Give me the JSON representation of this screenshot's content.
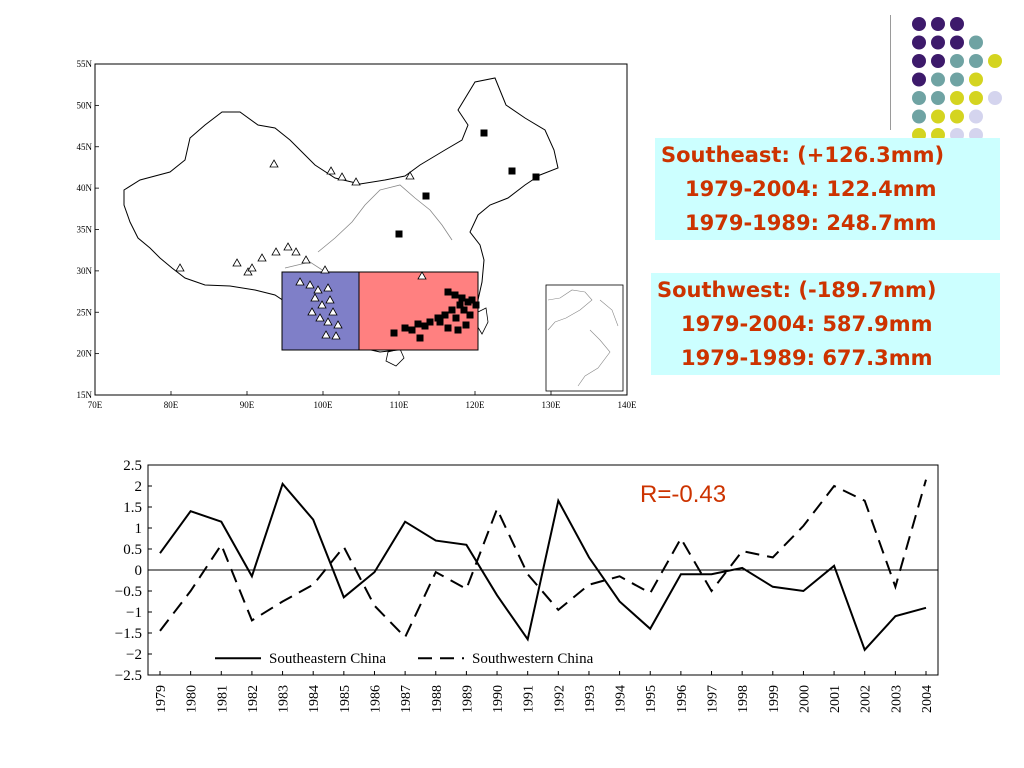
{
  "map": {
    "lat_ticks": [
      "55N",
      "50N",
      "45N",
      "40N",
      "35N",
      "30N",
      "25N",
      "20N",
      "15N"
    ],
    "lon_ticks": [
      "70E",
      "80E",
      "90E",
      "100E",
      "110E",
      "120E",
      "130E",
      "140E"
    ],
    "colors": {
      "southwest_region": "#7f7fc8",
      "southeast_region": "#ff8080"
    }
  },
  "colors": {
    "text_accent": "#cc3300",
    "infobox_bg": "#ccffff",
    "dot_purple": "#3d1a6b",
    "dot_teal": "#6fa3a3",
    "dot_yellow": "#d4d420",
    "dot_lilac": "#d4d4ee"
  },
  "southeast": {
    "title": "Southeast: (+126.3mm)",
    "line1": "1979-2004: 122.4mm",
    "line2": "1979-1989: 248.7mm"
  },
  "southwest": {
    "title": "Southwest: (-189.7mm)",
    "line1": "1979-2004: 587.9mm",
    "line2": "1979-1989: 677.3mm"
  },
  "correlation": "R=-0.43",
  "chart_data": {
    "type": "line",
    "x": [
      "1979",
      "1980",
      "1981",
      "1982",
      "1983",
      "1984",
      "1985",
      "1986",
      "1987",
      "1988",
      "1989",
      "1990",
      "1991",
      "1992",
      "1993",
      "1994",
      "1995",
      "1996",
      "1997",
      "1998",
      "1999",
      "2000",
      "2001",
      "2002",
      "2003",
      "2004"
    ],
    "ylim": [
      -2.5,
      2.5
    ],
    "yticks": [
      "2.5",
      "2",
      "1.5",
      "1",
      "0.5",
      "0",
      "−0.5",
      "−1",
      "−1.5",
      "−2",
      "−2.5"
    ],
    "legend_position": "lower-left",
    "series": [
      {
        "name": "Southeastern China",
        "style": "solid",
        "values": [
          0.4,
          1.4,
          1.15,
          -0.15,
          2.05,
          1.2,
          -0.65,
          -0.05,
          1.15,
          0.7,
          0.6,
          -0.6,
          -1.65,
          1.65,
          0.3,
          -0.75,
          -1.4,
          -0.1,
          -0.1,
          0.05,
          -0.4,
          -0.5,
          0.1,
          -1.9,
          -1.1,
          -0.9
        ]
      },
      {
        "name": "Southwestern China",
        "style": "dashed",
        "values": [
          -1.45,
          -0.5,
          0.6,
          -1.2,
          -0.75,
          -0.35,
          0.55,
          -0.85,
          -1.6,
          -0.05,
          -0.45,
          1.45,
          -0.1,
          -0.95,
          -0.35,
          -0.15,
          -0.55,
          0.75,
          -0.5,
          0.45,
          0.3,
          1.05,
          2.0,
          1.65,
          -0.4,
          2.15
        ]
      }
    ]
  }
}
